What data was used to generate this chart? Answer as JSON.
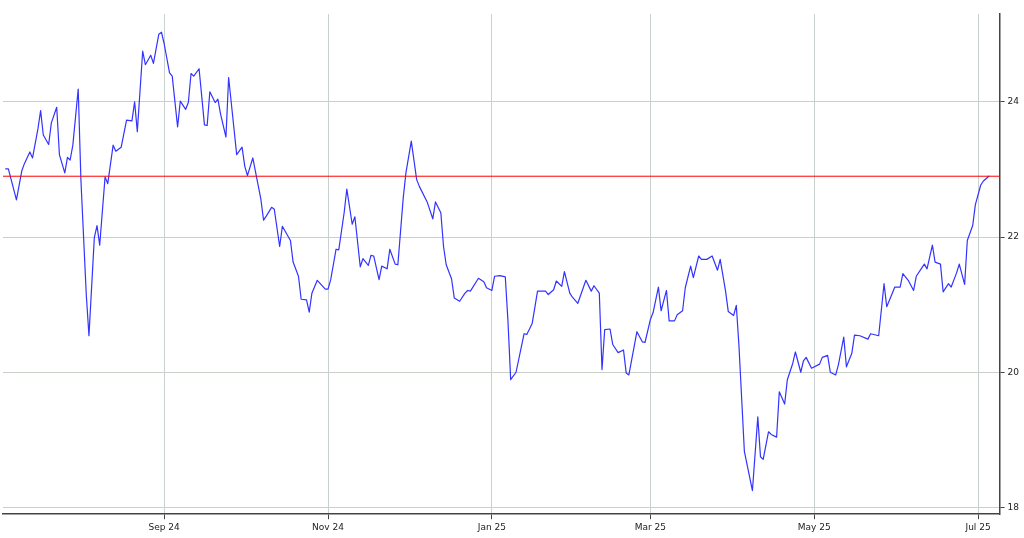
{
  "chart_data": {
    "type": "line",
    "x": [
      "2024-07-04",
      "2024-07-05",
      "2024-07-08",
      "2024-07-10",
      "2024-07-11",
      "2024-07-13",
      "2024-07-14",
      "2024-07-16",
      "2024-07-17",
      "2024-07-18",
      "2024-07-20",
      "2024-07-21",
      "2024-07-23",
      "2024-07-24",
      "2024-07-26",
      "2024-07-27",
      "2024-07-28",
      "2024-07-29",
      "2024-07-31",
      "2024-08-01",
      "2024-08-03",
      "2024-08-04",
      "2024-08-06",
      "2024-08-07",
      "2024-08-08",
      "2024-08-10",
      "2024-08-11",
      "2024-08-13",
      "2024-08-14",
      "2024-08-16",
      "2024-08-18",
      "2024-08-20",
      "2024-08-21",
      "2024-08-22",
      "2024-08-24",
      "2024-08-25",
      "2024-08-27",
      "2024-08-28",
      "2024-08-30",
      "2024-08-31",
      "2024-09-01",
      "2024-09-03",
      "2024-09-04",
      "2024-09-06",
      "2024-09-07",
      "2024-09-09",
      "2024-09-10",
      "2024-09-11",
      "2024-09-12",
      "2024-09-14",
      "2024-09-16",
      "2024-09-17",
      "2024-09-18",
      "2024-09-20",
      "2024-09-21",
      "2024-09-22",
      "2024-09-24",
      "2024-09-25",
      "2024-09-28",
      "2024-09-30",
      "2024-10-01",
      "2024-10-02",
      "2024-10-04",
      "2024-10-07",
      "2024-10-08",
      "2024-10-09",
      "2024-10-11",
      "2024-10-12",
      "2024-10-14",
      "2024-10-15",
      "2024-10-16",
      "2024-10-18",
      "2024-10-19",
      "2024-10-21",
      "2024-10-22",
      "2024-10-24",
      "2024-10-25",
      "2024-10-26",
      "2024-10-28",
      "2024-10-31",
      "2024-11-01",
      "2024-11-02",
      "2024-11-04",
      "2024-11-05",
      "2024-11-07",
      "2024-11-08",
      "2024-11-10",
      "2024-11-11",
      "2024-11-13",
      "2024-11-14",
      "2024-11-16",
      "2024-11-17",
      "2024-11-18",
      "2024-11-20",
      "2024-11-21",
      "2024-11-23",
      "2024-11-24",
      "2024-11-26",
      "2024-11-27",
      "2024-11-29",
      "2024-11-30",
      "2024-12-02",
      "2024-12-04",
      "2024-12-05",
      "2024-12-08",
      "2024-12-10",
      "2024-12-11",
      "2024-12-13",
      "2024-12-14",
      "2024-12-15",
      "2024-12-17",
      "2024-12-18",
      "2024-12-20",
      "2024-12-22",
      "2024-12-23",
      "2024-12-24",
      "2024-12-27",
      "2024-12-29",
      "2024-12-30",
      "2025-01-01",
      "2025-01-02",
      "2025-01-04",
      "2025-01-06",
      "2025-01-07",
      "2025-01-08",
      "2025-01-10",
      "2025-01-13",
      "2025-01-14",
      "2025-01-16",
      "2025-01-18",
      "2025-01-21",
      "2025-01-22",
      "2025-01-24",
      "2025-01-25",
      "2025-01-27",
      "2025-01-28",
      "2025-01-30",
      "2025-01-31",
      "2025-02-02",
      "2025-02-05",
      "2025-02-07",
      "2025-02-08",
      "2025-02-10",
      "2025-02-11",
      "2025-02-12",
      "2025-02-14",
      "2025-02-15",
      "2025-02-17",
      "2025-02-19",
      "2025-02-20",
      "2025-02-21",
      "2025-02-24",
      "2025-02-26",
      "2025-02-27",
      "2025-03-01",
      "2025-03-02",
      "2025-03-04",
      "2025-03-05",
      "2025-03-07",
      "2025-03-08",
      "2025-03-10",
      "2025-03-11",
      "2025-03-13",
      "2025-03-14",
      "2025-03-16",
      "2025-03-17",
      "2025-03-19",
      "2025-03-20",
      "2025-03-22",
      "2025-03-24",
      "2025-03-26",
      "2025-03-27",
      "2025-03-29",
      "2025-03-30",
      "2025-04-01",
      "2025-04-02",
      "2025-04-03",
      "2025-04-05",
      "2025-04-08",
      "2025-04-10",
      "2025-04-11",
      "2025-04-12",
      "2025-04-14",
      "2025-04-15",
      "2025-04-17",
      "2025-04-18",
      "2025-04-20",
      "2025-04-21",
      "2025-04-23",
      "2025-04-24",
      "2025-04-26",
      "2025-04-27",
      "2025-04-28",
      "2025-04-30",
      "2025-05-03",
      "2025-05-04",
      "2025-05-06",
      "2025-05-07",
      "2025-05-09",
      "2025-05-10",
      "2025-05-12",
      "2025-05-13",
      "2025-05-15",
      "2025-05-16",
      "2025-05-18",
      "2025-05-21",
      "2025-05-22",
      "2025-05-25",
      "2025-05-27",
      "2025-05-28",
      "2025-05-30",
      "2025-05-31",
      "2025-06-02",
      "2025-06-03",
      "2025-06-05",
      "2025-06-07",
      "2025-06-08",
      "2025-06-10",
      "2025-06-11",
      "2025-06-12",
      "2025-06-14",
      "2025-06-15",
      "2025-06-17",
      "2025-06-18",
      "2025-06-20",
      "2025-06-21",
      "2025-06-23",
      "2025-06-24",
      "2025-06-26",
      "2025-06-27",
      "2025-06-29",
      "2025-06-30",
      "2025-07-02",
      "2025-07-03",
      "2025-07-05"
    ],
    "series": [
      {
        "color": "#3333ff",
        "values": [
          23.01,
          23.01,
          22.55,
          22.98,
          23.09,
          23.26,
          23.17,
          23.6,
          23.87,
          23.51,
          23.37,
          23.69,
          23.92,
          23.22,
          22.95,
          23.18,
          23.14,
          23.36,
          24.19,
          22.85,
          21.15,
          20.54,
          21.99,
          22.17,
          21.88,
          22.89,
          22.79,
          23.36,
          23.27,
          23.33,
          23.73,
          23.72,
          24.0,
          23.56,
          24.75,
          24.55,
          24.69,
          24.57,
          25.0,
          25.03,
          24.86,
          24.43,
          24.38,
          23.63,
          24.01,
          23.89,
          23.99,
          24.42,
          24.38,
          24.49,
          23.66,
          23.65,
          24.15,
          23.99,
          24.04,
          23.82,
          23.48,
          24.36,
          23.22,
          23.33,
          23.05,
          22.91,
          23.17,
          22.56,
          22.25,
          22.31,
          22.44,
          22.41,
          21.86,
          22.16,
          22.09,
          21.95,
          21.63,
          21.42,
          21.08,
          21.07,
          20.89,
          21.17,
          21.36,
          21.23,
          21.23,
          21.37,
          21.82,
          21.81,
          22.36,
          22.71,
          22.19,
          22.3,
          21.56,
          21.68,
          21.58,
          21.73,
          21.72,
          21.37,
          21.57,
          21.53,
          21.82,
          21.6,
          21.59,
          22.58,
          22.95,
          23.42,
          22.85,
          22.75,
          22.51,
          22.27,
          22.52,
          22.36,
          21.86,
          21.59,
          21.38,
          21.1,
          21.05,
          21.17,
          21.21,
          21.2,
          21.39,
          21.34,
          21.25,
          21.21,
          21.42,
          21.43,
          21.41,
          20.75,
          19.89,
          20.0,
          20.57,
          20.56,
          20.72,
          21.2,
          21.2,
          21.15,
          21.22,
          21.35,
          21.27,
          21.49,
          21.17,
          21.11,
          21.02,
          21.36,
          21.2,
          21.28,
          21.17,
          20.04,
          20.63,
          20.64,
          20.41,
          20.29,
          20.33,
          19.99,
          19.96,
          20.6,
          20.45,
          20.44,
          20.78,
          20.88,
          21.26,
          20.91,
          21.21,
          20.76,
          20.76,
          20.85,
          20.91,
          21.25,
          21.57,
          21.4,
          21.72,
          21.67,
          21.67,
          21.72,
          21.51,
          21.67,
          21.2,
          20.9,
          20.84,
          20.99,
          20.38,
          18.83,
          18.25,
          19.34,
          18.75,
          18.71,
          19.12,
          19.08,
          19.04,
          19.71,
          19.53,
          19.89,
          20.13,
          20.3,
          20.0,
          20.17,
          20.22,
          20.06,
          20.12,
          20.22,
          20.25,
          20.0,
          19.96,
          20.11,
          20.52,
          20.08,
          20.28,
          20.55,
          20.54,
          20.49,
          20.57,
          20.54,
          21.31,
          20.97,
          21.16,
          21.26,
          21.26,
          21.46,
          21.36,
          21.21,
          21.42,
          21.54,
          21.6,
          21.53,
          21.88,
          21.63,
          21.6,
          21.19,
          21.31,
          21.26,
          21.47,
          21.6,
          21.3,
          21.95,
          22.17,
          22.48,
          22.77,
          22.83,
          22.9
        ]
      }
    ],
    "xlim": [
      "2024-07-03",
      "2025-07-09"
    ],
    "xticks": [
      {
        "value": "2024-09-01",
        "label": "Sep 24"
      },
      {
        "value": "2024-11-01",
        "label": "Nov 24"
      },
      {
        "value": "2025-01-01",
        "label": "Jan 25"
      },
      {
        "value": "2025-03-01",
        "label": "Mar 25"
      },
      {
        "value": "2025-05-01",
        "label": "May 25"
      },
      {
        "value": "2025-07-01",
        "label": "Jul 25"
      }
    ],
    "ylim": [
      17.9,
      25.3
    ],
    "yticks": [
      18,
      20,
      22,
      24
    ],
    "grid": true,
    "marker": "none",
    "line_style": "solid",
    "ref_lines": [
      {
        "axis": "y",
        "value": 22.9,
        "color": "#ff0000"
      }
    ]
  }
}
